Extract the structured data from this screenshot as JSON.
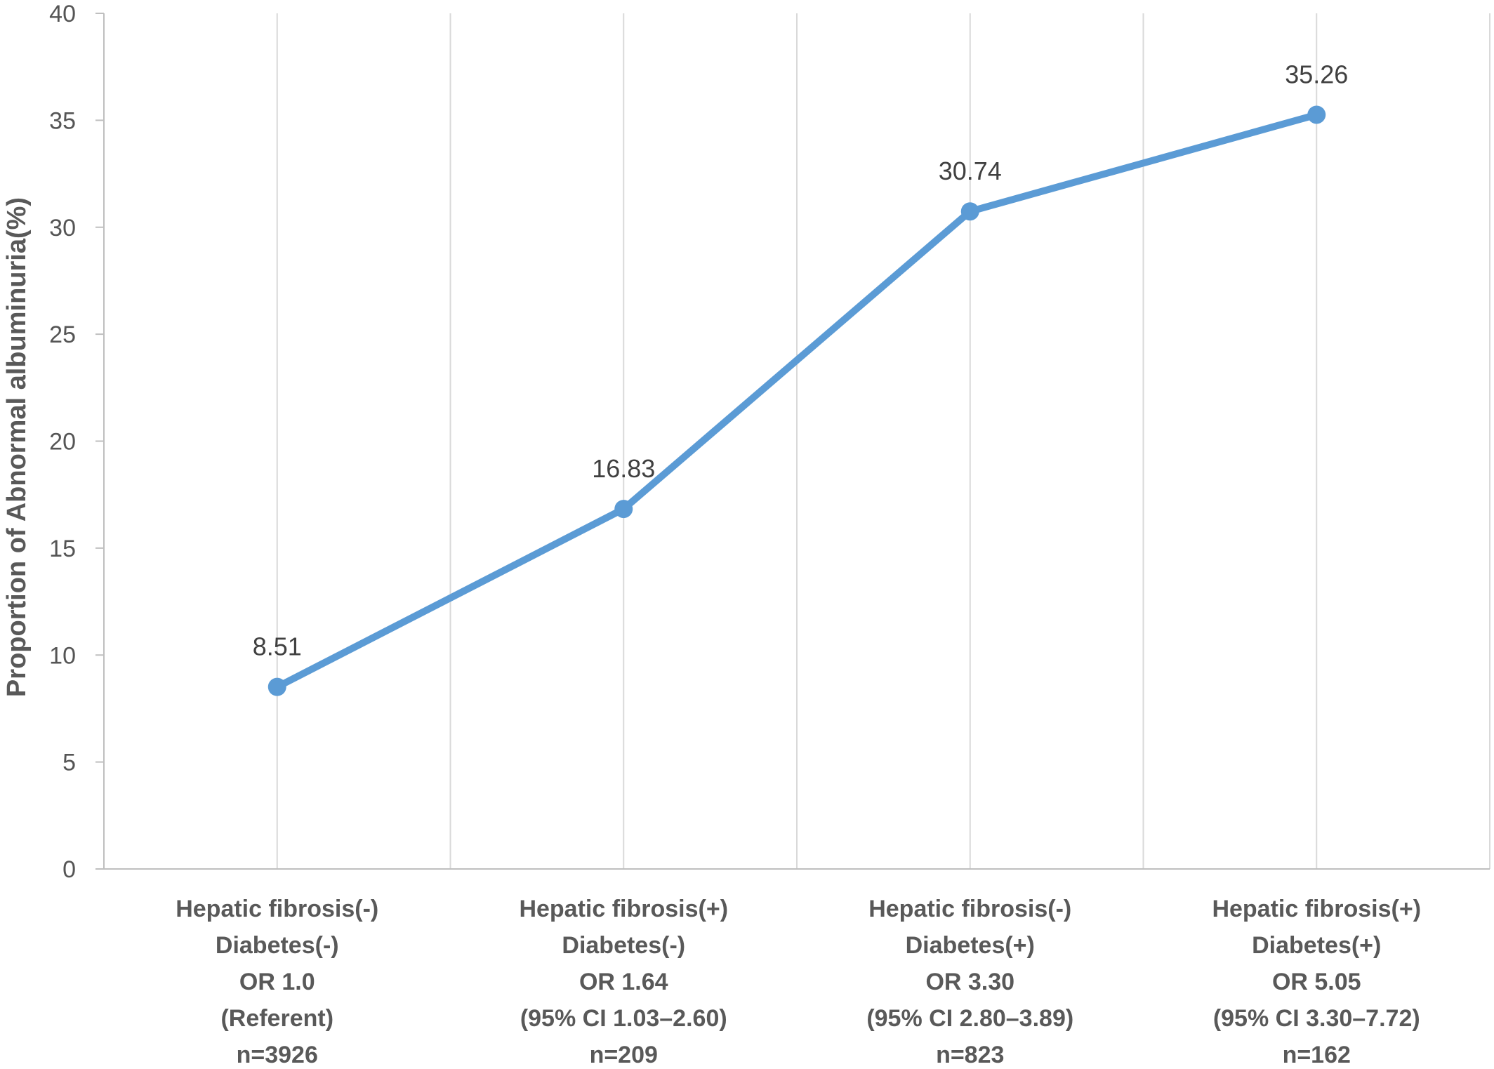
{
  "chart_data": {
    "type": "line",
    "categories": [
      [
        "Hepatic fibrosis(-)",
        "Diabetes(-)",
        "OR 1.0",
        "(Referent)",
        "n=3926"
      ],
      [
        "Hepatic fibrosis(+)",
        "Diabetes(-)",
        "OR 1.64",
        "(95% CI 1.03–2.60)",
        "n=209"
      ],
      [
        "Hepatic fibrosis(-)",
        "Diabetes(+)",
        "OR 3.30",
        "(95% CI 2.80–3.89)",
        "n=823"
      ],
      [
        "Hepatic fibrosis(+)",
        "Diabetes(+)",
        "OR 5.05",
        "(95% CI 3.30–7.72)",
        "n=162"
      ]
    ],
    "values": [
      8.51,
      16.83,
      30.74,
      35.26
    ],
    "data_labels": [
      "8.51",
      "16.83",
      "30.74",
      "35.26"
    ],
    "ylabel": "Proportion of Abnormal albuminuria(%)",
    "ylim": [
      0,
      40
    ],
    "yticks": [
      0,
      5,
      10,
      15,
      20,
      25,
      30,
      35,
      40
    ],
    "grid": "vertical",
    "legend": "none",
    "colors": {
      "line": "#5B9BD5",
      "grid": "#D9D9D9",
      "axis": "#BFBFBF"
    }
  }
}
